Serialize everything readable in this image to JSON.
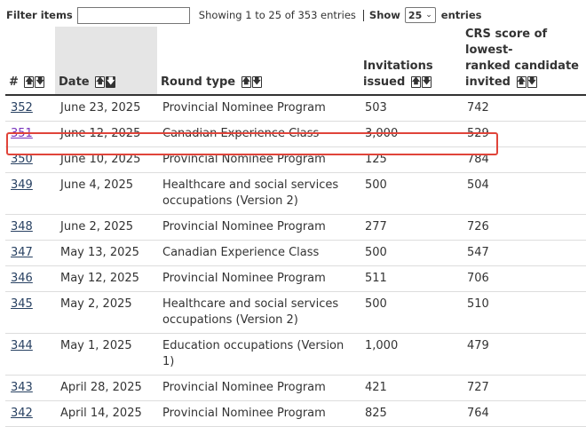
{
  "toolbar": {
    "filter_label": "Filter items",
    "filter_value": "",
    "showing_text": "Showing 1 to 25 of 353 entries",
    "show_label": "Show",
    "page_size": "25",
    "entries_label": "entries"
  },
  "columns": {
    "number": "#",
    "date": "Date",
    "round_type": "Round type",
    "invitations_1": "Invitations",
    "invitations_2": "issued",
    "crs_1": "CRS score of lowest-",
    "crs_2": "ranked candidate",
    "crs_3": "invited"
  },
  "rows": [
    {
      "num": "352",
      "date": "June 23, 2025",
      "type_1": "Provincial Nominee Program",
      "type_2": "",
      "invitations": "503",
      "crs": "742"
    },
    {
      "num": "351",
      "date": "June 12, 2025",
      "type_1": "Canadian Experience Class",
      "type_2": "",
      "invitations": "3,000",
      "crs": "529"
    },
    {
      "num": "350",
      "date": "June 10, 2025",
      "type_1": "Provincial Nominee Program",
      "type_2": "",
      "invitations": "125",
      "crs": "784"
    },
    {
      "num": "349",
      "date": "June 4, 2025",
      "type_1": "Healthcare and social services",
      "type_2": "occupations (Version 2)",
      "invitations": "500",
      "crs": "504"
    },
    {
      "num": "348",
      "date": "June 2, 2025",
      "type_1": "Provincial Nominee Program",
      "type_2": "",
      "invitations": "277",
      "crs": "726"
    },
    {
      "num": "347",
      "date": "May 13, 2025",
      "type_1": "Canadian Experience Class",
      "type_2": "",
      "invitations": "500",
      "crs": "547"
    },
    {
      "num": "346",
      "date": "May 12, 2025",
      "type_1": "Provincial Nominee Program",
      "type_2": "",
      "invitations": "511",
      "crs": "706"
    },
    {
      "num": "345",
      "date": "May 2, 2025",
      "type_1": "Healthcare and social services",
      "type_2": "occupations (Version 2)",
      "invitations": "500",
      "crs": "510"
    },
    {
      "num": "344",
      "date": "May 1, 2025",
      "type_1": "Education occupations (Version 1)",
      "type_2": "",
      "invitations": "1,000",
      "crs": "479"
    },
    {
      "num": "343",
      "date": "April 28, 2025",
      "type_1": "Provincial Nominee Program",
      "type_2": "",
      "invitations": "421",
      "crs": "727"
    },
    {
      "num": "342",
      "date": "April 14, 2025",
      "type_1": "Provincial Nominee Program",
      "type_2": "",
      "invitations": "825",
      "crs": "764"
    }
  ],
  "colors": {
    "link": "#284162",
    "visited_link": "#7834bc",
    "highlight": "#e0443a",
    "sorted_header_bg": "#e5e5e5"
  },
  "icons": {
    "sort_up": "arrow-up-icon",
    "sort_down": "arrow-down-icon",
    "select_chevron": "chevron-down-icon"
  }
}
